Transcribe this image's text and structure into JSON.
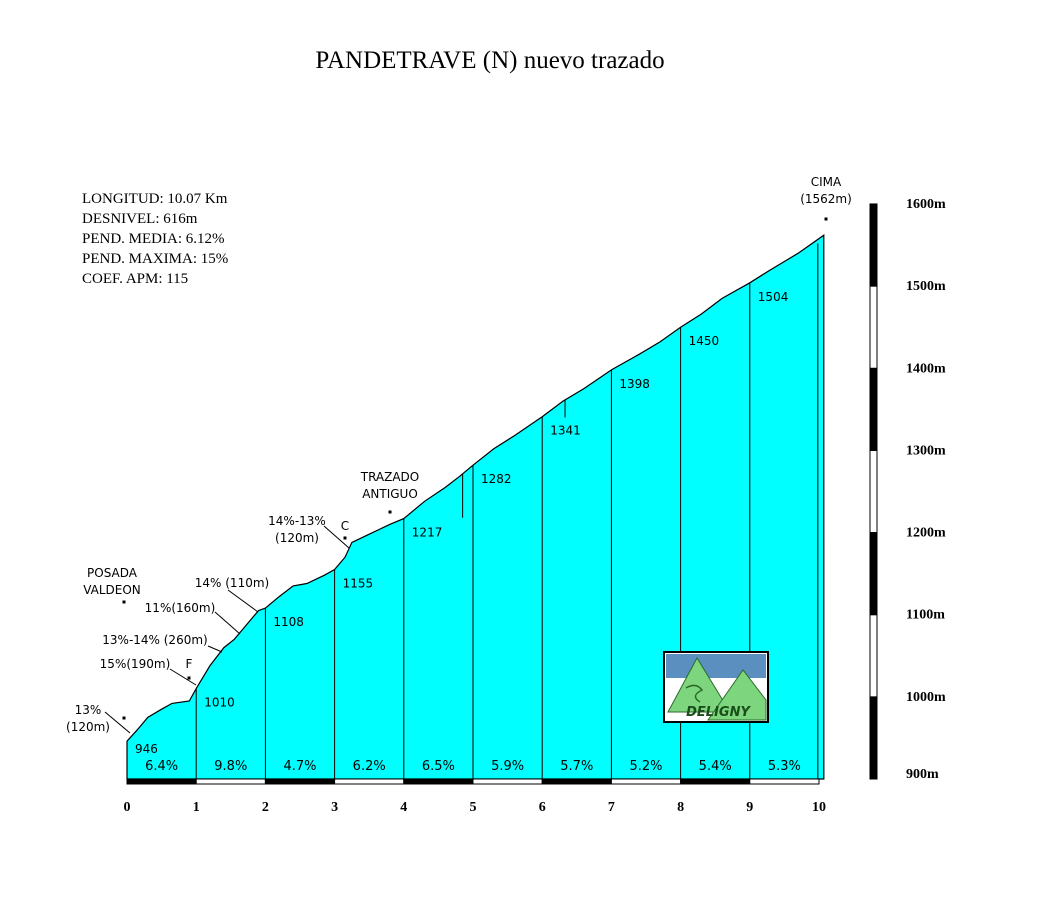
{
  "chart_data": {
    "type": "area",
    "title": "PANDETRAVE (N) nuevo trazado",
    "stats": [
      "LONGITUD: 10.07 Km",
      "DESNIVEL: 616m",
      "PEND. MEDIA: 6.12%",
      "PEND. MAXIMA: 15%",
      "COEF. APM: 115"
    ],
    "x_ticks": [
      "0",
      "1",
      "2",
      "3",
      "4",
      "5",
      "6",
      "7",
      "8",
      "9",
      "10"
    ],
    "y_ticks": [
      {
        "value": 900,
        "label": "900m"
      },
      {
        "value": 1000,
        "label": "1000m"
      },
      {
        "value": 1100,
        "label": "1100m"
      },
      {
        "value": 1200,
        "label": "1200m"
      },
      {
        "value": 1300,
        "label": "1300m"
      },
      {
        "value": 1400,
        "label": "1400m"
      },
      {
        "value": 1500,
        "label": "1500m"
      },
      {
        "value": 1600,
        "label": "1600m"
      }
    ],
    "xlim": [
      0,
      10.07
    ],
    "ylim": [
      900,
      1600
    ],
    "km_elevations": [
      {
        "km": 0,
        "label": "946"
      },
      {
        "km": 1,
        "label": "1010"
      },
      {
        "km": 2,
        "label": "1108"
      },
      {
        "km": 3,
        "label": "1155"
      },
      {
        "km": 4,
        "label": "1217"
      },
      {
        "km": 5,
        "label": "1282"
      },
      {
        "km": 6,
        "label": "1341"
      },
      {
        "km": 7,
        "label": "1398"
      },
      {
        "km": 8,
        "label": "1450"
      },
      {
        "km": 9,
        "label": "1504"
      },
      {
        "km": 10.07,
        "label": "1562"
      }
    ],
    "segment_gradients": [
      "6.4%",
      "9.8%",
      "4.7%",
      "6.2%",
      "6.5%",
      "5.9%",
      "5.7%",
      "5.2%",
      "5.4%",
      "5.3%"
    ],
    "profile": [
      [
        0,
        946
      ],
      [
        0.15,
        960
      ],
      [
        0.3,
        975
      ],
      [
        0.5,
        985
      ],
      [
        0.65,
        992
      ],
      [
        0.9,
        995
      ],
      [
        1.0,
        1010
      ],
      [
        1.2,
        1038
      ],
      [
        1.4,
        1060
      ],
      [
        1.55,
        1070
      ],
      [
        1.75,
        1090
      ],
      [
        1.9,
        1105
      ],
      [
        2.0,
        1108
      ],
      [
        2.2,
        1122
      ],
      [
        2.4,
        1135
      ],
      [
        2.6,
        1138
      ],
      [
        2.85,
        1148
      ],
      [
        3.0,
        1155
      ],
      [
        3.15,
        1170
      ],
      [
        3.25,
        1188
      ],
      [
        3.5,
        1198
      ],
      [
        3.8,
        1210
      ],
      [
        4.0,
        1217
      ],
      [
        4.3,
        1238
      ],
      [
        4.6,
        1255
      ],
      [
        4.8,
        1268
      ],
      [
        5.0,
        1282
      ],
      [
        5.3,
        1302
      ],
      [
        5.6,
        1318
      ],
      [
        6.0,
        1341
      ],
      [
        6.3,
        1360
      ],
      [
        6.6,
        1375
      ],
      [
        7.0,
        1398
      ],
      [
        7.4,
        1417
      ],
      [
        7.7,
        1432
      ],
      [
        8.0,
        1450
      ],
      [
        8.3,
        1466
      ],
      [
        8.6,
        1485
      ],
      [
        9.0,
        1504
      ],
      [
        9.3,
        1520
      ],
      [
        9.7,
        1540
      ],
      [
        10.07,
        1562
      ]
    ],
    "annotations": [
      {
        "lines": [
          "CIMA",
          "(1562m)"
        ],
        "km": 10.07,
        "ele": 1562
      },
      {
        "lines": [
          "TRAZADO",
          "ANTIGUO"
        ],
        "km": 3.85,
        "ele": 1212
      },
      {
        "lines": [
          "14%-13%",
          "(120m)"
        ],
        "km": 3.25,
        "ele": 1188
      },
      {
        "lines": [
          "C"
        ],
        "km": 3.25,
        "ele": 1188
      },
      {
        "lines": [
          "POSADA",
          "VALDEON"
        ],
        "km": 0.0,
        "ele": 946
      },
      {
        "lines": [
          "14% (110m)"
        ],
        "km": 1.9,
        "ele": 1105
      },
      {
        "lines": [
          "11%(160m)"
        ],
        "km": 1.6,
        "ele": 1072
      },
      {
        "lines": [
          "13%-14%  (260m)"
        ],
        "km": 1.35,
        "ele": 1052
      },
      {
        "lines": [
          "15%(190m)"
        ],
        "km": 1.0,
        "ele": 1010
      },
      {
        "lines": [
          "F"
        ],
        "km": 0.95,
        "ele": 1000
      },
      {
        "lines": [
          "13%",
          "(120m)"
        ],
        "km": 0.0,
        "ele": 946
      }
    ],
    "colors": {
      "fill": "#00ffff",
      "line": "#000000",
      "logo_sky": "#5a8fbf",
      "logo_mountain": "#7dd67d"
    },
    "logo_text": "DELIGNY"
  }
}
